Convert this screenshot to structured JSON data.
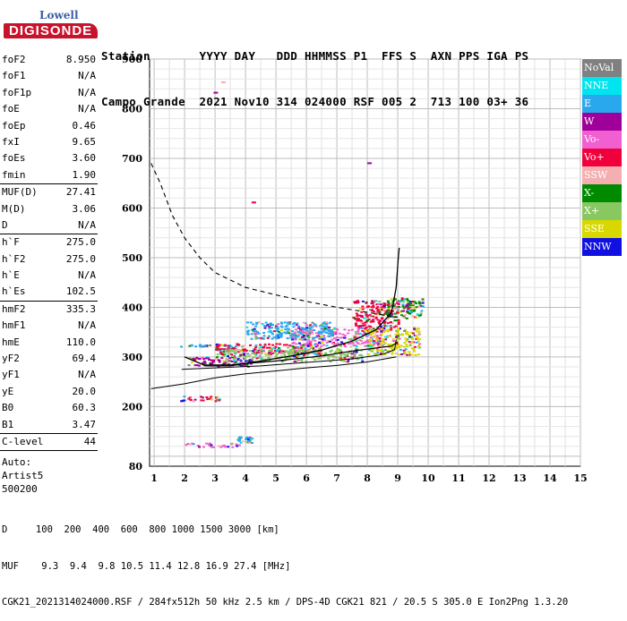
{
  "logo": {
    "brand": "Lowell",
    "name": "DIGISONDE"
  },
  "header": {
    "line1": "Station       YYYY DAY   DDD HHMMSS P1  FFS S  AXN PPS IGA PS",
    "line2": "Campo Grande  2021 Nov10 314 024000 RSF 005 2  713 100 03+ 36"
  },
  "params": {
    "group1": [
      {
        "k": "foF2",
        "v": "8.950"
      },
      {
        "k": "foF1",
        "v": "N/A"
      },
      {
        "k": "foF1p",
        "v": "N/A"
      },
      {
        "k": "foE",
        "v": "N/A"
      },
      {
        "k": "foEp",
        "v": "0.46"
      },
      {
        "k": "fxI",
        "v": "9.65"
      },
      {
        "k": "foEs",
        "v": "3.60"
      },
      {
        "k": "fmin",
        "v": "1.90"
      }
    ],
    "group2": [
      {
        "k": "MUF(D)",
        "v": "27.41"
      },
      {
        "k": "M(D)",
        "v": "3.06"
      },
      {
        "k": "D",
        "v": "N/A"
      }
    ],
    "group3": [
      {
        "k": "h`F",
        "v": "275.0"
      },
      {
        "k": "h`F2",
        "v": "275.0"
      },
      {
        "k": "h`E",
        "v": "N/A"
      },
      {
        "k": "h`Es",
        "v": "102.5"
      }
    ],
    "group4": [
      {
        "k": "hmF2",
        "v": "335.3"
      },
      {
        "k": "hmF1",
        "v": "N/A"
      },
      {
        "k": "hmE",
        "v": "110.0"
      },
      {
        "k": "yF2",
        "v": "69.4"
      },
      {
        "k": "yF1",
        "v": "N/A"
      },
      {
        "k": "yE",
        "v": "20.0"
      },
      {
        "k": "B0",
        "v": "60.3"
      },
      {
        "k": "B1",
        "v": "3.47"
      }
    ],
    "group5": [
      {
        "k": "C-level",
        "v": "44"
      }
    ],
    "auto": [
      "Auto:",
      "Artist5",
      "500200"
    ]
  },
  "legend": [
    {
      "label": "NoVal",
      "color": "#808080"
    },
    {
      "label": "NNE",
      "color": "#00e4f0"
    },
    {
      "label": "E",
      "color": "#2aa8ee"
    },
    {
      "label": "W",
      "color": "#a0009a"
    },
    {
      "label": "Vo-",
      "color": "#f060d0"
    },
    {
      "label": "Vo+",
      "color": "#f0003c"
    },
    {
      "label": "SSW",
      "color": "#f4b0b0"
    },
    {
      "label": "X-",
      "color": "#008a00"
    },
    {
      "label": "X+",
      "color": "#88c860"
    },
    {
      "label": "SSE",
      "color": "#d8d800"
    },
    {
      "label": "NNW",
      "color": "#1010e0"
    }
  ],
  "footer": {
    "line1": "D     100  200  400  600  800 1000 1500 3000 [km]",
    "line2": "MUF    9.3  9.4  9.8 10.5 11.4 12.8 16.9 27.4 [MHz]",
    "line3": "CGK21_2021314024000.RSF / 284fx512h 50 kHz 2.5 km / DPS-4D CGK21 821 / 20.5 S 305.0 E Ion2Png 1.3.20"
  },
  "chart_data": {
    "type": "scatter",
    "x_ticks": [
      1,
      2,
      3,
      4,
      5,
      6,
      7,
      8,
      9,
      10,
      11,
      12,
      13,
      14,
      15
    ],
    "y_ticks": [
      80,
      200,
      300,
      400,
      500,
      600,
      700,
      800,
      900
    ],
    "xlim": [
      0.85,
      15
    ],
    "ylim": [
      80,
      900
    ],
    "grid": true,
    "legend_placement": "right",
    "trace_bands": [
      {
        "x0": 1.85,
        "x1": 4.1,
        "y0": 322,
        "y1": 326,
        "color": "#2aa8ee"
      },
      {
        "x0": 1.85,
        "x1": 3.15,
        "y0": 212,
        "y1": 222,
        "color": "#f0003c"
      },
      {
        "x0": 2.0,
        "x1": 3.9,
        "y0": 120,
        "y1": 128,
        "color": "#f060d0"
      },
      {
        "x0": 3.7,
        "x1": 4.2,
        "y0": 128,
        "y1": 141,
        "color": "#2aa8ee"
      },
      {
        "x0": 2.1,
        "x1": 4.2,
        "y0": 282,
        "y1": 302,
        "color": "#a0009a"
      },
      {
        "x0": 3.0,
        "x1": 6.5,
        "y0": 306,
        "y1": 328,
        "color": "#f0003c"
      },
      {
        "x0": 5.5,
        "x1": 8.5,
        "y0": 322,
        "y1": 360,
        "color": "#f060d0"
      },
      {
        "x0": 7.5,
        "x1": 9.0,
        "y0": 352,
        "y1": 415,
        "color": "#f0003c"
      },
      {
        "x0": 8.0,
        "x1": 9.7,
        "y0": 305,
        "y1": 360,
        "color": "#d8d800"
      },
      {
        "x0": 4.0,
        "x1": 6.8,
        "y0": 338,
        "y1": 372,
        "color": "#2aa8ee"
      },
      {
        "x0": 8.6,
        "x1": 9.8,
        "y0": 378,
        "y1": 420,
        "color": "#008a00"
      },
      {
        "x0": 3.2,
        "x1": 7.8,
        "y0": 292,
        "y1": 318,
        "color": "#88c860"
      }
    ],
    "spots": [
      {
        "x": 2.95,
        "y": 834,
        "color": "#a0009a"
      },
      {
        "x": 8.0,
        "y": 692,
        "color": "#a0009a"
      },
      {
        "x": 4.2,
        "y": 613,
        "color": "#f0003c"
      },
      {
        "x": 3.2,
        "y": 855,
        "color": "#f4b0b0"
      }
    ],
    "curves": {
      "o_trace": [
        [
          2.0,
          300
        ],
        [
          2.7,
          282
        ],
        [
          3.5,
          282
        ],
        [
          4.5,
          292
        ],
        [
          5.5,
          302
        ],
        [
          6.5,
          314
        ],
        [
          7.5,
          332
        ],
        [
          8.3,
          355
        ],
        [
          8.8,
          390
        ],
        [
          8.95,
          440
        ],
        [
          9.02,
          500
        ],
        [
          9.05,
          520
        ]
      ],
      "x_trace": [
        [
          2.7,
          284
        ],
        [
          3.5,
          284
        ],
        [
          5.0,
          292
        ],
        [
          6.5,
          302
        ],
        [
          7.5,
          312
        ],
        [
          8.3,
          318
        ],
        [
          8.8,
          322
        ],
        [
          9.0,
          330
        ]
      ],
      "profile": [
        [
          1.9,
          275
        ],
        [
          3.0,
          278
        ],
        [
          4.5,
          282
        ],
        [
          6.0,
          289
        ],
        [
          7.5,
          296
        ],
        [
          8.5,
          305
        ],
        [
          8.9,
          315
        ],
        [
          8.95,
          335
        ]
      ],
      "muf_dashed": [
        [
          0.9,
          690
        ],
        [
          1.2,
          650
        ],
        [
          1.6,
          585
        ],
        [
          2.0,
          540
        ],
        [
          2.5,
          500
        ],
        [
          3.0,
          470
        ],
        [
          4.0,
          440
        ],
        [
          5.0,
          425
        ],
        [
          6.0,
          412
        ],
        [
          7.0,
          400
        ],
        [
          8.0,
          390
        ],
        [
          9.0,
          380
        ]
      ],
      "base_line": [
        [
          0.9,
          236
        ],
        [
          2.0,
          246
        ],
        [
          3.0,
          258
        ],
        [
          4.0,
          266
        ],
        [
          5.0,
          272
        ],
        [
          6.0,
          278
        ],
        [
          7.0,
          283
        ],
        [
          8.0,
          290
        ],
        [
          8.95,
          300
        ]
      ]
    }
  }
}
